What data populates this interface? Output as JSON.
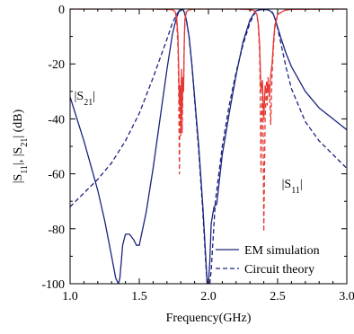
{
  "chart_data": {
    "type": "line",
    "xlabel": "Frequency(GHz)",
    "ylabel_html": "|S11|, |S21| (dB)",
    "ylabel_parts": [
      {
        "t": "|S",
        "sub": false
      },
      {
        "t": "11",
        "sub": true
      },
      {
        "t": "|, |S",
        "sub": false
      },
      {
        "t": "21",
        "sub": true
      },
      {
        "t": "| (dB)",
        "sub": false
      }
    ],
    "xlim": [
      1.0,
      3.0
    ],
    "ylim": [
      -100,
      0
    ],
    "x_ticks": [
      1.0,
      1.5,
      2.0,
      2.5,
      3.0
    ],
    "x_tick_labels": [
      "1.0",
      "1.5",
      "2.0",
      "2.5",
      "3.0"
    ],
    "y_ticks": [
      0,
      -20,
      -40,
      -60,
      -80,
      -100
    ],
    "y_tick_labels": [
      "0",
      "-20",
      "-40",
      "-60",
      "-80",
      "-100"
    ],
    "grid": false,
    "legend_position": "bottom-right",
    "legend": [
      {
        "label": "EM simulation",
        "style": "solid",
        "color": "#1a237e"
      },
      {
        "label": "Circuit theory",
        "style": "dashed",
        "color": "#1a237e"
      }
    ],
    "annotations": [
      {
        "id": "s21",
        "main": "|S",
        "sub": "21",
        "tail": "|",
        "x": 1.03,
        "y": -33
      },
      {
        "id": "s11",
        "main": "|S",
        "sub": "11",
        "tail": "|",
        "x": 2.53,
        "y": -65
      }
    ],
    "series": [
      {
        "id": "s21_em",
        "color": "#1a237e",
        "style": "solid",
        "x": [
          1.0,
          1.05,
          1.1,
          1.15,
          1.2,
          1.25,
          1.3,
          1.33,
          1.35,
          1.36,
          1.37,
          1.38,
          1.4,
          1.43,
          1.46,
          1.48,
          1.5,
          1.55,
          1.6,
          1.65,
          1.7,
          1.74,
          1.77,
          1.79,
          1.8,
          1.81,
          1.82,
          1.83,
          1.84,
          1.86,
          1.88,
          1.9,
          1.93,
          1.96,
          1.98,
          1.99,
          2.0,
          2.01,
          2.02,
          2.04,
          2.06,
          2.1,
          2.15,
          2.2,
          2.25,
          2.3,
          2.34,
          2.37,
          2.39,
          2.41,
          2.43,
          2.45,
          2.47,
          2.49,
          2.52,
          2.56,
          2.6,
          2.7,
          2.8,
          2.9,
          3.0
        ],
        "y": [
          -32,
          -40,
          -48,
          -57,
          -66,
          -77,
          -90,
          -98,
          -100,
          -98,
          -92,
          -86,
          -82,
          -82,
          -84,
          -86,
          -86,
          -74,
          -58,
          -40,
          -22,
          -9,
          -3,
          -0.5,
          -0.2,
          -0.2,
          -0.5,
          -2,
          -4,
          -10,
          -20,
          -32,
          -50,
          -72,
          -90,
          -99,
          -100,
          -92,
          -78,
          -72,
          -71,
          -53,
          -38,
          -24,
          -12,
          -4,
          -0.8,
          -0.3,
          -0.2,
          -0.2,
          -0.3,
          -0.8,
          -2,
          -5,
          -10,
          -16,
          -21,
          -30,
          -36,
          -40,
          -44
        ]
      },
      {
        "id": "s21_ct",
        "color": "#1a237e",
        "style": "dashed",
        "x": [
          1.0,
          1.1,
          1.2,
          1.3,
          1.4,
          1.5,
          1.6,
          1.65,
          1.7,
          1.74,
          1.77,
          1.79,
          1.8,
          1.81,
          1.82,
          1.83,
          1.84,
          1.86,
          1.88,
          1.9,
          1.93,
          1.96,
          1.98,
          1.99,
          2.0,
          2.01,
          2.02,
          2.05,
          2.1,
          2.15,
          2.2,
          2.25,
          2.3,
          2.34,
          2.37,
          2.4,
          2.43,
          2.46,
          2.48,
          2.5,
          2.53,
          2.56,
          2.6,
          2.7,
          2.8,
          2.9,
          3.0
        ],
        "y": [
          -72,
          -67,
          -62,
          -56,
          -48,
          -38,
          -25,
          -18,
          -11,
          -5,
          -2,
          -0.5,
          -0.2,
          -0.2,
          -0.5,
          -2,
          -4,
          -10,
          -20,
          -33,
          -52,
          -74,
          -92,
          -100,
          -100,
          -100,
          -95,
          -70,
          -50,
          -35,
          -23,
          -13,
          -5,
          -1,
          -0.3,
          -0.2,
          -0.3,
          -1,
          -3,
          -7,
          -14,
          -21,
          -29,
          -41,
          -48,
          -53,
          -58
        ]
      },
      {
        "id": "s11_em",
        "color": "#e53935",
        "style": "solid",
        "x": [
          1.0,
          1.6,
          1.7,
          1.74,
          1.76,
          1.77,
          1.78,
          1.785,
          1.79,
          1.795,
          1.8,
          1.805,
          1.81,
          1.815,
          1.82,
          1.825,
          1.83,
          1.84,
          1.86,
          1.9,
          2.0,
          2.2,
          2.3,
          2.33,
          2.35,
          2.36,
          2.37,
          2.38,
          2.39,
          2.4,
          2.41,
          2.42,
          2.43,
          2.44,
          2.45,
          2.46,
          2.47,
          2.48,
          2.5,
          2.55,
          2.6,
          3.0
        ],
        "y": [
          0,
          0,
          -0.1,
          -0.3,
          -1,
          -3,
          -10,
          -22,
          -35,
          -28,
          -46,
          -22,
          -38,
          -25,
          -30,
          -12,
          -4,
          -1,
          -0.3,
          0,
          0,
          0,
          -0.2,
          -0.6,
          -2,
          -5,
          -13,
          -30,
          -26,
          -40,
          -28,
          -30,
          -27,
          -32,
          -24,
          -20,
          -12,
          -6,
          -2,
          -0.5,
          -0.1,
          0
        ]
      },
      {
        "id": "s11_ct",
        "color": "#e53935",
        "style": "dashed",
        "x": [
          1.0,
          1.6,
          1.7,
          1.74,
          1.76,
          1.77,
          1.78,
          1.785,
          1.79,
          1.795,
          1.8,
          1.805,
          1.81,
          1.815,
          1.82,
          1.825,
          1.83,
          1.84,
          1.86,
          1.9,
          2.0,
          2.2,
          2.3,
          2.33,
          2.35,
          2.36,
          2.37,
          2.375,
          2.38,
          2.385,
          2.39,
          2.395,
          2.4,
          2.41,
          2.42,
          2.425,
          2.43,
          2.44,
          2.45,
          2.46,
          2.47,
          2.48,
          2.5,
          2.55,
          2.6,
          3.0
        ],
        "y": [
          0,
          0,
          -0.1,
          -0.3,
          -1,
          -4,
          -14,
          -30,
          -60,
          -30,
          -42,
          -25,
          -45,
          -30,
          -28,
          -12,
          -4,
          -1,
          -0.3,
          0,
          0,
          0,
          -0.2,
          -0.6,
          -2,
          -6,
          -16,
          -35,
          -60,
          -38,
          -30,
          -42,
          -81,
          -40,
          -26,
          -35,
          -25,
          -28,
          -42,
          -24,
          -14,
          -7,
          -2,
          -0.5,
          -0.1,
          0
        ]
      }
    ]
  }
}
